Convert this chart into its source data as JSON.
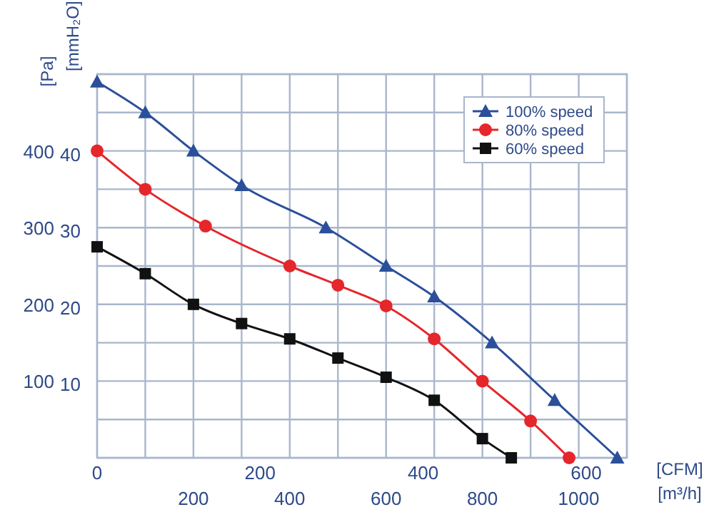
{
  "chart_data": {
    "type": "line",
    "xlabel": "[m³/h]",
    "x2label": "[CFM]",
    "ylabel": "[Pa]",
    "y2label": "[mmH₂O]",
    "xlim": [
      0,
      1100
    ],
    "xticks": [
      {
        "value": 0,
        "label": null
      },
      {
        "value": 100,
        "label": null
      },
      200,
      {
        "value": 300,
        "label": null
      },
      400,
      {
        "value": 500,
        "label": null
      },
      600,
      {
        "value": 700,
        "label": null
      },
      800,
      {
        "value": 900,
        "label": null
      },
      1000,
      {
        "value": 1100,
        "label": null
      }
    ],
    "x2lim": [
      0,
      650
    ],
    "x2ticks": [
      0,
      200,
      400,
      600
    ],
    "ylim": [
      0,
      500
    ],
    "yticks": [
      {
        "value": 0,
        "label": null
      },
      {
        "value": 50,
        "label": null
      },
      100,
      {
        "value": 150,
        "label": null
      },
      200,
      {
        "value": 250,
        "label": null
      },
      300,
      {
        "value": 350,
        "label": null
      },
      400,
      {
        "value": 450,
        "label": null
      },
      {
        "value": 500,
        "label": null
      }
    ],
    "y2lim": [
      0,
      50
    ],
    "y2ticks": [
      10,
      20,
      30,
      40
    ],
    "grid": true,
    "legend": "top right",
    "line_style": "solid",
    "series": [
      {
        "name": "100%  speed",
        "color": "#2b4f9a",
        "marker": "triangle",
        "x": [
          0,
          100,
          200,
          300,
          475,
          600,
          700,
          820,
          950,
          1080
        ],
        "values": [
          490,
          450,
          400,
          355,
          300,
          250,
          210,
          150,
          75,
          0
        ]
      },
      {
        "name": "80%  speed",
        "color": "#e5262b",
        "marker": "circle",
        "x": [
          0,
          100,
          225,
          400,
          500,
          600,
          700,
          800,
          900,
          980
        ],
        "values": [
          400,
          350,
          302,
          250,
          225,
          198,
          155,
          100,
          48,
          0
        ]
      },
      {
        "name": "60%  speed",
        "color": "#111111",
        "marker": "square",
        "x": [
          0,
          100,
          200,
          300,
          400,
          500,
          600,
          700,
          800,
          860
        ],
        "values": [
          275,
          240,
          200,
          175,
          155,
          130,
          105,
          75,
          25,
          0
        ]
      }
    ]
  }
}
